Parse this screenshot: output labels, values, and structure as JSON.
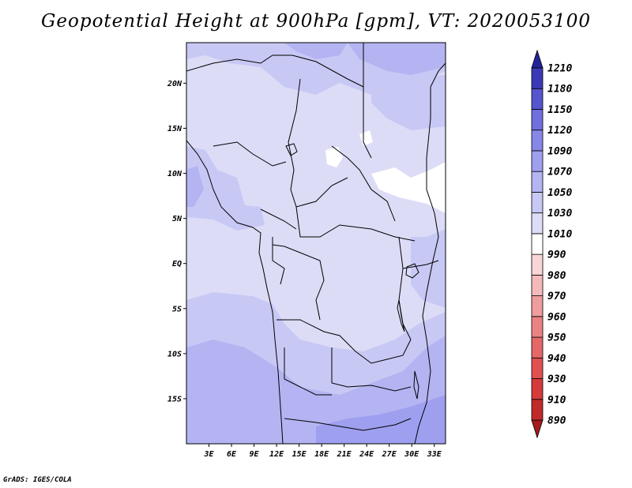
{
  "title": "Geopotential Height at 900hPa [gpm], VT: 2020053100",
  "credit": "GrADS: IGES/COLA",
  "chart_data": {
    "type": "heatmap",
    "title": "Geopotential Height at 900hPa [gpm], VT: 2020053100",
    "variable": "Geopotential Height",
    "level": "900hPa",
    "units": "gpm",
    "valid_time": "2020053100",
    "x_axis": {
      "range_deg": [
        0,
        34.5
      ],
      "ticks": [
        {
          "value": 3,
          "label": "3E"
        },
        {
          "value": 6,
          "label": "6E"
        },
        {
          "value": 9,
          "label": "9E"
        },
        {
          "value": 12,
          "label": "12E"
        },
        {
          "value": 15,
          "label": "15E"
        },
        {
          "value": 18,
          "label": "18E"
        },
        {
          "value": 21,
          "label": "21E"
        },
        {
          "value": 24,
          "label": "24E"
        },
        {
          "value": 27,
          "label": "27E"
        },
        {
          "value": 30,
          "label": "30E"
        },
        {
          "value": 33,
          "label": "33E"
        }
      ]
    },
    "y_axis": {
      "range_deg": [
        -20,
        24.5
      ],
      "ticks": [
        {
          "value": 20,
          "label": "20N"
        },
        {
          "value": 15,
          "label": "15N"
        },
        {
          "value": 10,
          "label": "10N"
        },
        {
          "value": 5,
          "label": "5N"
        },
        {
          "value": 0,
          "label": "EQ"
        },
        {
          "value": -5,
          "label": "5S"
        },
        {
          "value": -10,
          "label": "10S"
        },
        {
          "value": -15,
          "label": "15S"
        }
      ]
    },
    "colorbar": {
      "levels": [
        890,
        910,
        930,
        940,
        950,
        960,
        970,
        980,
        990,
        1010,
        1030,
        1050,
        1070,
        1090,
        1120,
        1150,
        1180,
        1210
      ],
      "labels": [
        "890",
        "910",
        "930",
        "940",
        "950",
        "960",
        "970",
        "980",
        "990",
        "1010",
        "1030",
        "1050",
        "1070",
        "1090",
        "1120",
        "1150",
        "1180",
        "1210"
      ],
      "colors": [
        "#a51c1c",
        "#c12a2a",
        "#d63a3a",
        "#e05050",
        "#e56767",
        "#ea8282",
        "#ef9d9d",
        "#f4baba",
        "#f8d6d6",
        "#ffffff",
        "#dcdcf7",
        "#c8c8f5",
        "#b4b4f3",
        "#9f9ff0",
        "#8787e8",
        "#6f6fde",
        "#5555cf",
        "#3a3ab8",
        "#24249a"
      ]
    },
    "field_regions": [
      {
        "value": 1010,
        "color": "#ffffff",
        "where": "north-central and northeast pockets"
      },
      {
        "value": 1020,
        "color": "#dcdcf7",
        "where": "Sahel, Congo basin, equatorial band"
      },
      {
        "value": 1040,
        "color": "#c8c8f5",
        "where": "Gulf of Guinea, northern edge, Atlantic south of equator"
      },
      {
        "value": 1060,
        "color": "#b4b4f3",
        "where": "southern Atlantic, southern Africa"
      },
      {
        "value": 1080,
        "color": "#9f9ff0",
        "where": "far southeast (Mozambique region)"
      }
    ]
  }
}
